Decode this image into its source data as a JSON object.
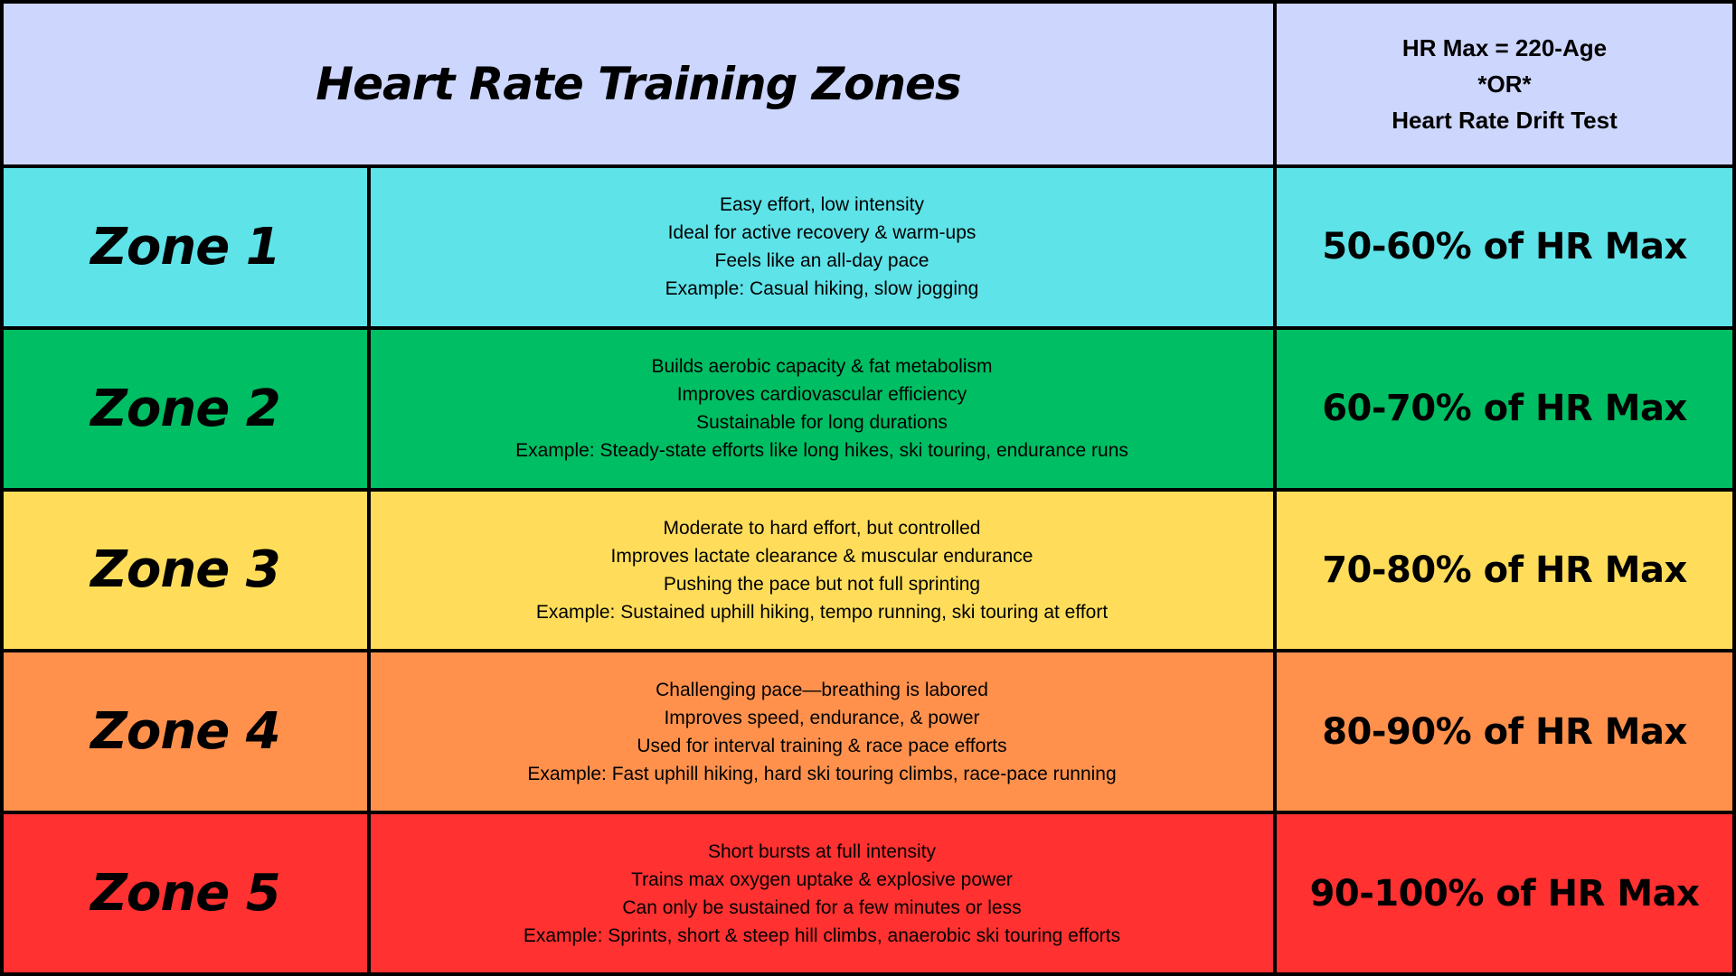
{
  "header": {
    "title": "Heart Rate Training Zones",
    "formula_lines": [
      "HR Max = 220-Age",
      "*OR*",
      "Heart Rate Drift Test"
    ],
    "background": "#cdd6fd"
  },
  "zones": [
    {
      "name": "Zone 1",
      "color": "#5ee3e8",
      "description": [
        "Easy effort, low intensity",
        "Ideal for active recovery & warm-ups",
        "Feels like an all-day pace",
        "Example: Casual hiking, slow jogging"
      ],
      "range": "50-60% of HR Max"
    },
    {
      "name": "Zone 2",
      "color": "#00be63",
      "description": [
        "Builds aerobic capacity & fat metabolism",
        "Improves cardiovascular efficiency",
        "Sustainable for long durations",
        "Example: Steady-state efforts like long hikes, ski touring, endurance runs"
      ],
      "range": "60-70% of HR Max"
    },
    {
      "name": "Zone 3",
      "color": "#ffdd5a",
      "description": [
        "Moderate to hard effort, but controlled",
        "Improves lactate clearance & muscular endurance",
        "Pushing the pace but not full sprinting",
        "Example: Sustained uphill hiking, tempo running, ski touring at effort"
      ],
      "range": "70-80% of HR Max"
    },
    {
      "name": "Zone 4",
      "color": "#ff914d",
      "description": [
        "Challenging pace—breathing is labored",
        "Improves speed, endurance, & power",
        "Used for interval training & race pace efforts",
        "Example: Fast uphill hiking, hard ski touring climbs, race-pace running"
      ],
      "range": "80-90% of HR Max"
    },
    {
      "name": "Zone 5",
      "color": "#ff3131",
      "description": [
        "Short bursts at full intensity",
        "Trains max oxygen uptake & explosive power",
        "Can only be sustained for a few minutes or less",
        "Example: Sprints, short & steep hill climbs, anaerobic ski touring efforts"
      ],
      "range": "90-100% of HR Max"
    }
  ]
}
